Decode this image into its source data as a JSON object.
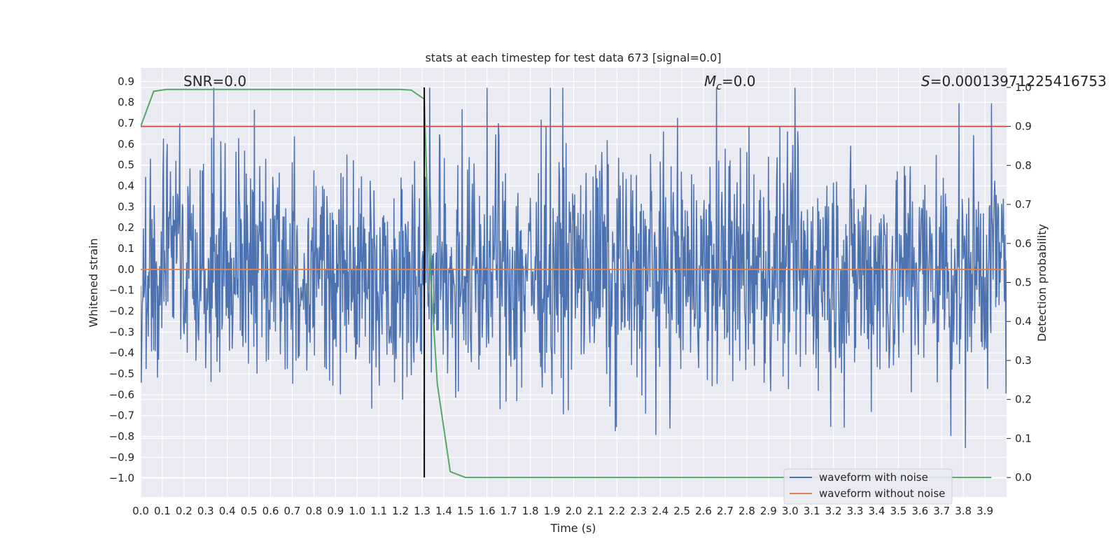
{
  "chart_data": {
    "type": "line",
    "title": "stats at each timestep for test data 673 [signal=0.0]",
    "xlabel": "Time (s)",
    "ylabel": "Whitened strain",
    "y2label": "Detection probability",
    "xlim": [
      0.0,
      4.0
    ],
    "ylim": [
      -1.09,
      0.965
    ],
    "y2lim": [
      -0.05,
      1.05
    ],
    "x_ticks": [
      "0.0",
      "0.1",
      "0.2",
      "0.3",
      "0.4",
      "0.5",
      "0.6",
      "0.7",
      "0.8",
      "0.9",
      "1.0",
      "1.1",
      "1.2",
      "1.3",
      "1.4",
      "1.5",
      "1.6",
      "1.7",
      "1.8",
      "1.9",
      "2.0",
      "2.1",
      "2.2",
      "2.3",
      "2.4",
      "2.5",
      "2.6",
      "2.7",
      "2.8",
      "2.9",
      "3.0",
      "3.1",
      "3.2",
      "3.3",
      "3.4",
      "3.5",
      "3.6",
      "3.7",
      "3.8",
      "3.9"
    ],
    "y_ticks": [
      "0.9",
      "0.8",
      "0.7",
      "0.6",
      "0.5",
      "0.4",
      "0.3",
      "0.2",
      "0.1",
      "0.0",
      "−0.1",
      "−0.2",
      "−0.3",
      "−0.4",
      "−0.5",
      "−0.6",
      "−0.7",
      "−0.8",
      "−0.9",
      "−1.0"
    ],
    "y2_ticks": [
      "1.0",
      "0.9",
      "0.8",
      "0.7",
      "0.6",
      "0.5",
      "0.4",
      "0.3",
      "0.2",
      "0.1",
      "0.0"
    ],
    "grid": true,
    "annotations": {
      "snr": "SNR=0.0",
      "mc_symbol": "M",
      "mc_sub": "c",
      "mc_value": "=0.0",
      "s_symbol": "S",
      "s_value": "=0.00013971225416753"
    },
    "series": [
      {
        "name": "waveform with noise",
        "color": "#4c72b0",
        "description_of_values": "whitened noise, approx. range -0.97 to 0.87, dense over 0–4 s",
        "amplitude_range": [
          -0.97,
          0.87
        ]
      },
      {
        "name": "waveform without noise",
        "color": "#dd8452",
        "x": [
          0.0,
          4.0
        ],
        "y": [
          0.0,
          0.0
        ]
      },
      {
        "axis": "right",
        "color": "#55a868",
        "x": [
          0.0,
          0.06,
          0.12,
          0.3,
          0.6,
          0.9,
          1.1,
          1.2,
          1.25,
          1.31,
          1.33,
          1.37,
          1.43,
          1.5,
          1.6,
          2.0,
          3.0,
          3.93
        ],
        "y": [
          0.9,
          0.99,
          0.995,
          0.995,
          0.995,
          0.995,
          0.995,
          0.995,
          0.993,
          0.97,
          0.6,
          0.24,
          0.015,
          0.0,
          0.0,
          0.0,
          0.0,
          0.0
        ]
      },
      {
        "axis": "right",
        "color": "#c44e52",
        "x": [
          0.0,
          4.0
        ],
        "y": [
          0.9,
          0.9
        ]
      }
    ],
    "vline": {
      "x": 1.31,
      "color": "#000000"
    },
    "legend": {
      "placement": "lower-right",
      "entries": [
        {
          "label": "waveform with noise",
          "color": "#4c72b0"
        },
        {
          "label": "waveform without noise",
          "color": "#dd8452"
        }
      ]
    },
    "colors": {
      "axes_bg": "#eaeaf2",
      "grid": "#ffffff"
    }
  }
}
